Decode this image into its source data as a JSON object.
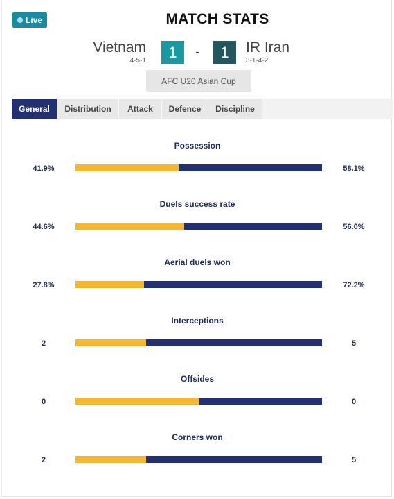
{
  "live_label": "Live",
  "title": "MATCH STATS",
  "home": {
    "name": "Vietnam",
    "formation": "4-5-1",
    "score": "1"
  },
  "away": {
    "name": "IR Iran",
    "formation": "3-1-4-2",
    "score": "1"
  },
  "score_separator": "-",
  "competition": "AFC U20 Asian Cup",
  "tabs": [
    {
      "label": "General",
      "active": true
    },
    {
      "label": "Distribution",
      "active": false
    },
    {
      "label": "Attack",
      "active": false
    },
    {
      "label": "Defence",
      "active": false
    },
    {
      "label": "Discipline",
      "active": false
    }
  ],
  "colors": {
    "home_bar": "#f5b630",
    "away_bar": "#233072",
    "live_badge": "#1a8aa3",
    "home_score": "#1a9aa0",
    "away_score": "#23565e"
  },
  "stats": [
    {
      "label": "Possession",
      "home": "41.9%",
      "away": "58.1%",
      "home_share": 0.419
    },
    {
      "label": "Duels success rate",
      "home": "44.6%",
      "away": "56.0%",
      "home_share": 0.44
    },
    {
      "label": "Aerial duels won",
      "home": "27.8%",
      "away": "72.2%",
      "home_share": 0.278
    },
    {
      "label": "Interceptions",
      "home": "2",
      "away": "5",
      "home_share": 0.2857
    },
    {
      "label": "Offsides",
      "home": "0",
      "away": "0",
      "home_share": 0.5
    },
    {
      "label": "Corners won",
      "home": "2",
      "away": "5",
      "home_share": 0.2857
    }
  ]
}
